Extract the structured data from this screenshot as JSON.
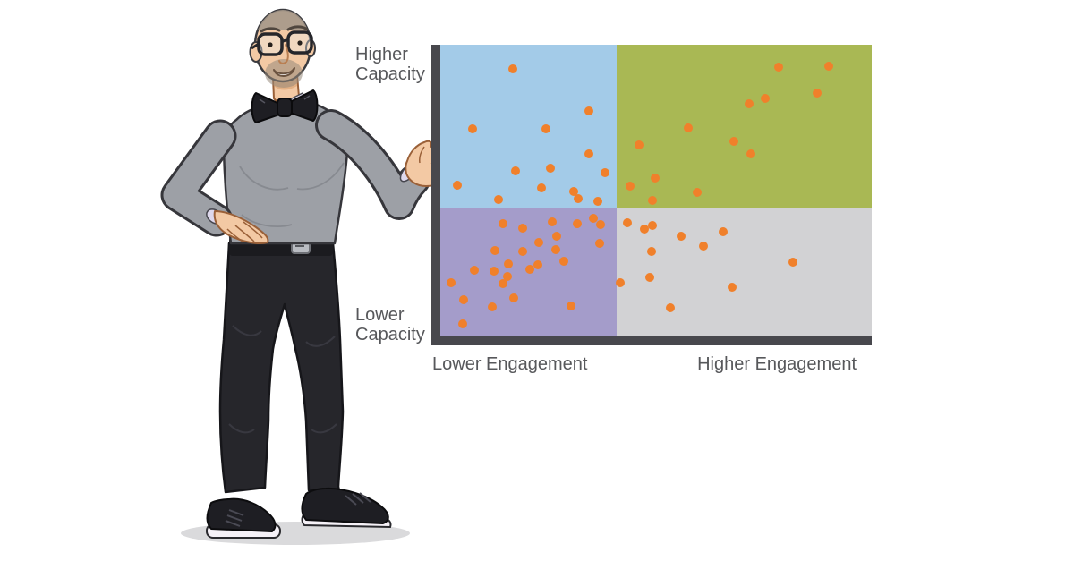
{
  "icons": {
    "presenter": "man-with-bow-tie-presenting-illustration"
  },
  "chart_data": {
    "type": "scatter",
    "title": "",
    "x_axis": {
      "left_label": "Lower Engagement",
      "right_label": "Higher Engagement",
      "range": [
        0,
        100
      ]
    },
    "y_axis": {
      "top_label": "Higher Capacity",
      "bottom_label": "Lower Capacity",
      "range": [
        0,
        100
      ]
    },
    "grid": false,
    "legend": "none",
    "axis_color": "#48484d",
    "label_color": "#57585b",
    "point_color": "#f0802b",
    "quadrant_split": {
      "x": 40.9,
      "y": 43.9
    },
    "quadrants": [
      {
        "id": "upper-left",
        "meaning": "higher capacity / lower engagement",
        "color": "#a3cbe8"
      },
      {
        "id": "upper-right",
        "meaning": "higher capacity / higher engagement",
        "color": "#a9b854"
      },
      {
        "id": "lower-left",
        "meaning": "lower capacity / lower engagement",
        "color": "#a49cca"
      },
      {
        "id": "lower-right",
        "meaning": "lower capacity / higher engagement",
        "color": "#d2d2d4"
      }
    ],
    "points": [
      [
        16.8,
        91.7
      ],
      [
        34.4,
        77.3
      ],
      [
        7.5,
        71.2
      ],
      [
        24.5,
        71.2
      ],
      [
        34.4,
        62.6
      ],
      [
        17.4,
        56.7
      ],
      [
        25.5,
        57.7
      ],
      [
        3.9,
        51.8
      ],
      [
        23.4,
        50.9
      ],
      [
        38.2,
        56.1
      ],
      [
        30.9,
        49.7
      ],
      [
        32.0,
        47.2
      ],
      [
        36.5,
        46.3
      ],
      [
        13.5,
        46.9
      ],
      [
        78.4,
        92.3
      ],
      [
        90.0,
        92.6
      ],
      [
        87.3,
        83.4
      ],
      [
        75.3,
        81.6
      ],
      [
        71.6,
        79.8
      ],
      [
        57.5,
        71.5
      ],
      [
        46.1,
        65.6
      ],
      [
        68.0,
        66.9
      ],
      [
        72.0,
        62.6
      ],
      [
        49.8,
        54.3
      ],
      [
        44.0,
        51.5
      ],
      [
        49.2,
        46.6
      ],
      [
        59.5,
        49.4
      ],
      [
        14.5,
        38.7
      ],
      [
        19.1,
        37.1
      ],
      [
        25.9,
        39.3
      ],
      [
        31.7,
        38.7
      ],
      [
        35.5,
        40.5
      ],
      [
        37.1,
        38.3
      ],
      [
        36.9,
        31.9
      ],
      [
        27.0,
        34.4
      ],
      [
        22.8,
        32.2
      ],
      [
        19.1,
        29.1
      ],
      [
        12.7,
        29.4
      ],
      [
        26.8,
        29.8
      ],
      [
        28.6,
        25.8
      ],
      [
        22.6,
        24.5
      ],
      [
        20.7,
        23.0
      ],
      [
        15.8,
        24.8
      ],
      [
        12.4,
        22.4
      ],
      [
        7.9,
        22.7
      ],
      [
        15.6,
        20.6
      ],
      [
        14.5,
        18.1
      ],
      [
        2.5,
        18.4
      ],
      [
        5.4,
        12.6
      ],
      [
        17.0,
        13.2
      ],
      [
        12.0,
        10.1
      ],
      [
        30.3,
        10.4
      ],
      [
        5.2,
        4.3
      ],
      [
        43.4,
        39.0
      ],
      [
        47.3,
        36.8
      ],
      [
        49.2,
        38.0
      ],
      [
        55.8,
        34.4
      ],
      [
        61.0,
        31.0
      ],
      [
        65.6,
        35.9
      ],
      [
        49.0,
        29.1
      ],
      [
        81.7,
        25.5
      ],
      [
        48.5,
        20.2
      ],
      [
        41.7,
        18.4
      ],
      [
        67.6,
        16.9
      ],
      [
        53.3,
        9.8
      ]
    ]
  }
}
